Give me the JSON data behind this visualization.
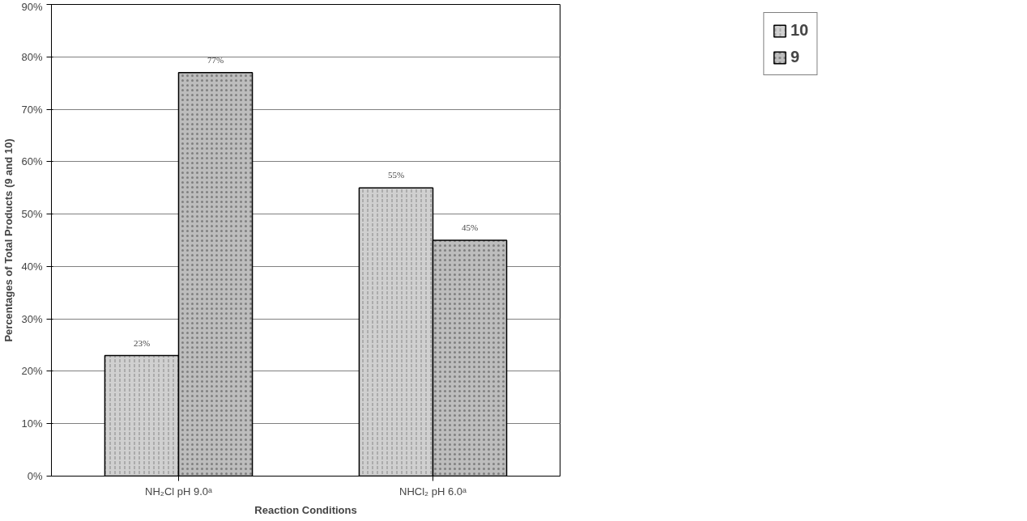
{
  "chart_data": {
    "type": "bar",
    "xlabel": "Reaction Conditions",
    "ylabel": "Percentages of Total Products (9 and 10)",
    "categories": [
      "NH₂Cl pH 9.0ᵃ",
      "NHCl₂ pH 6.0ᵃ"
    ],
    "series": [
      {
        "name": "10",
        "color": "#d0d0d0",
        "values": [
          23,
          55
        ]
      },
      {
        "name": "9",
        "color": "#bdbdbd",
        "values": [
          77,
          45
        ]
      }
    ],
    "ylim": [
      0,
      90
    ],
    "yticks": [
      {
        "value": 0,
        "label": "0%"
      },
      {
        "value": 10,
        "label": "10%"
      },
      {
        "value": 20,
        "label": "20%"
      },
      {
        "value": 30,
        "label": "30%"
      },
      {
        "value": 40,
        "label": "40%"
      },
      {
        "value": 50,
        "label": "50%"
      },
      {
        "value": 60,
        "label": "60%"
      },
      {
        "value": 70,
        "label": "70%"
      },
      {
        "value": 80,
        "label": "80%"
      },
      {
        "value": 90,
        "label": "90%"
      }
    ],
    "value_labels": [
      [
        "23%",
        "55%"
      ],
      [
        "77%",
        "45%"
      ]
    ],
    "grid": "y",
    "legend": "top right"
  }
}
